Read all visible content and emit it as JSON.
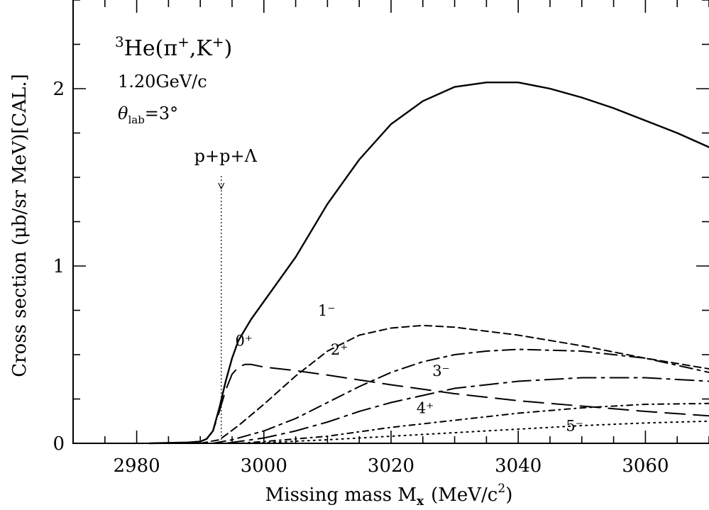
{
  "chart_data": {
    "type": "line",
    "title_lines": {
      "reaction_sup": "3",
      "reaction": "He(π",
      "reaction_sup2": "+",
      "reaction_mid": ",K",
      "reaction_sup3": "+",
      "reaction_end": ")",
      "momentum": "1.20GeV/c",
      "angle_symbol": "θ",
      "angle_sub": "lab",
      "angle_value": "=3°"
    },
    "xlabel": "Missing mass M",
    "xlabel_sub": "x",
    "xlabel_units": "(MeV/c",
    "xlabel_units_sup": "2",
    "xlabel_units_end": ")",
    "ylabel": "Cross section (μb/sr MeV)[CAL.]",
    "xlim": [
      2970,
      3070
    ],
    "ylim": [
      0,
      2.5
    ],
    "x_ticks": [
      2980,
      3000,
      3020,
      3040,
      3060
    ],
    "y_ticks": [
      0,
      1,
      2
    ],
    "threshold": {
      "label": "p+p+Λ",
      "x": 2993.3
    },
    "series": [
      {
        "name": "total",
        "label": "",
        "dash": "solid",
        "x": [
          2982,
          2988,
          2990,
          2991,
          2992,
          2993,
          2994,
          2995,
          2996,
          2998,
          3000,
          3005,
          3010,
          3015,
          3020,
          3025,
          3030,
          3035,
          3040,
          3045,
          3050,
          3055,
          3060,
          3065,
          3070
        ],
        "y": [
          0,
          0.005,
          0.01,
          0.025,
          0.07,
          0.2,
          0.35,
          0.48,
          0.58,
          0.7,
          0.8,
          1.05,
          1.35,
          1.6,
          1.8,
          1.93,
          2.01,
          2.035,
          2.035,
          2.0,
          1.95,
          1.89,
          1.82,
          1.75,
          1.67
        ]
      },
      {
        "name": "0+",
        "label": "0⁺",
        "dash": "long",
        "x": [
          2982,
          2988,
          2990,
          2991,
          2992,
          2993,
          2994,
          2995,
          2996,
          2997,
          2998,
          3000,
          3005,
          3010,
          3020,
          3030,
          3040,
          3050,
          3060,
          3070
        ],
        "y": [
          0,
          0.005,
          0.01,
          0.025,
          0.07,
          0.18,
          0.3,
          0.39,
          0.43,
          0.445,
          0.445,
          0.43,
          0.41,
          0.385,
          0.33,
          0.28,
          0.24,
          0.21,
          0.18,
          0.155
        ]
      },
      {
        "name": "1-",
        "label": "1⁻",
        "dash": "short",
        "x": [
          2990,
          2993,
          2996,
          3000,
          3005,
          3010,
          3015,
          3020,
          3025,
          3030,
          3040,
          3050,
          3060,
          3070
        ],
        "y": [
          0,
          0.02,
          0.1,
          0.22,
          0.38,
          0.52,
          0.61,
          0.65,
          0.665,
          0.655,
          0.61,
          0.55,
          0.48,
          0.42
        ]
      },
      {
        "name": "2+",
        "label": "2⁺",
        "dash": "dashdot",
        "x": [
          2992,
          2995,
          3000,
          3005,
          3010,
          3015,
          3020,
          3025,
          3030,
          3035,
          3040,
          3050,
          3060,
          3070
        ],
        "y": [
          0,
          0.02,
          0.07,
          0.14,
          0.23,
          0.32,
          0.4,
          0.46,
          0.5,
          0.52,
          0.53,
          0.52,
          0.48,
          0.4
        ]
      },
      {
        "name": "3-",
        "label": "3⁻",
        "dash": "longdashdot",
        "x": [
          2994,
          3000,
          3005,
          3010,
          3015,
          3020,
          3025,
          3030,
          3040,
          3050,
          3060,
          3070
        ],
        "y": [
          0,
          0.03,
          0.07,
          0.12,
          0.18,
          0.23,
          0.27,
          0.31,
          0.35,
          0.37,
          0.37,
          0.35
        ]
      },
      {
        "name": "4+",
        "label": "4⁺",
        "dash": "dotdash",
        "x": [
          2996,
          3000,
          3010,
          3020,
          3030,
          3040,
          3050,
          3060,
          3070
        ],
        "y": [
          0,
          0.01,
          0.04,
          0.09,
          0.13,
          0.17,
          0.2,
          0.22,
          0.225
        ]
      },
      {
        "name": "5-",
        "label": "5⁻",
        "dash": "dotted",
        "x": [
          2998,
          3010,
          3020,
          3030,
          3040,
          3050,
          3060,
          3070
        ],
        "y": [
          0,
          0.02,
          0.04,
          0.06,
          0.08,
          0.1,
          0.115,
          0.125
        ]
      }
    ],
    "grid": false,
    "legend": "none"
  }
}
